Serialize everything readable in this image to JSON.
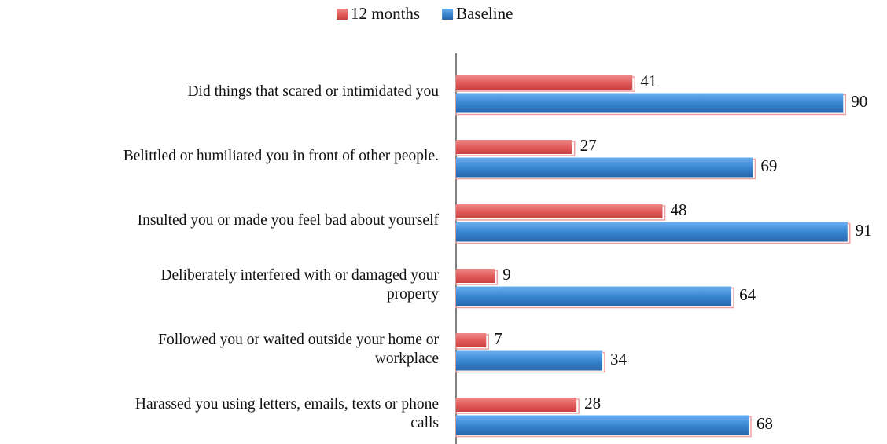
{
  "chart_data": {
    "type": "barh",
    "categories": [
      "Did things that scared or intimidated you",
      "Belittled or humiliated you in front of other people.",
      "Insulted you or made you feel bad about yourself",
      "Deliberately interfered with or damaged your\nproperty",
      "Followed you or waited outside your home or\nworkplace",
      "Harassed you using letters, emails, texts or phone\ncalls"
    ],
    "series": [
      {
        "name": "12 months",
        "color": "#e35b5b",
        "values": [
          41,
          27,
          48,
          9,
          7,
          28
        ]
      },
      {
        "name": "Baseline",
        "color": "#3a87d2",
        "values": [
          90,
          69,
          91,
          64,
          34,
          68
        ]
      }
    ],
    "xlim": [
      0,
      100
    ],
    "legend": "top"
  }
}
